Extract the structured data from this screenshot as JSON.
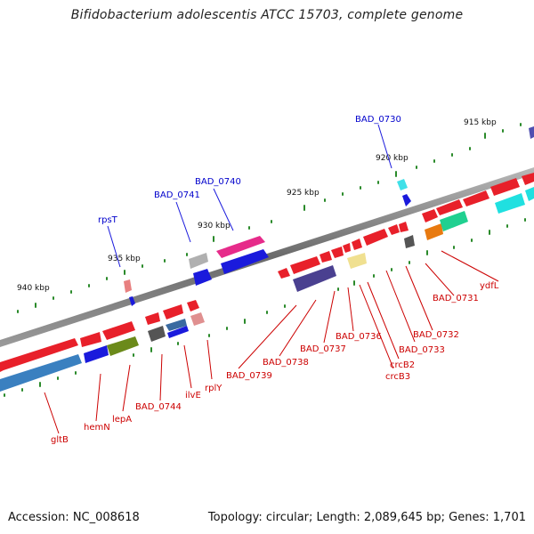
{
  "title": "Bifidobacterium adolescentis ATCC 15703, complete genome",
  "footer": {
    "accession": "Accession: NC_008618",
    "topology": "Topology: circular; Length: 2,089,645 bp; Genes: 1,701"
  },
  "ruler": [
    "915 kbp",
    "920 kbp",
    "925 kbp",
    "930 kbp",
    "935 kbp",
    "940 kbp"
  ],
  "gene_labels_top": [
    "BAD_0730",
    "BAD_0740",
    "BAD_0741",
    "rpsT"
  ],
  "gene_labels_bottom": [
    "ydfL",
    "BAD_0731",
    "BAD_0732",
    "BAD_0733",
    "crcB2",
    "crcB3",
    "BAD_0736",
    "BAD_0737",
    "BAD_0738",
    "BAD_0739",
    "rplY",
    "ilvE",
    "BAD_0744",
    "lepA",
    "hemN",
    "gltB"
  ],
  "colors": {
    "backbone": "#8a8a8a",
    "gene_red": "#e8202a",
    "gene_blue": "#1a1adc",
    "label_red": "#cc0000",
    "label_blue": "#0000cc",
    "tick_green": "#2a8a2a"
  }
}
